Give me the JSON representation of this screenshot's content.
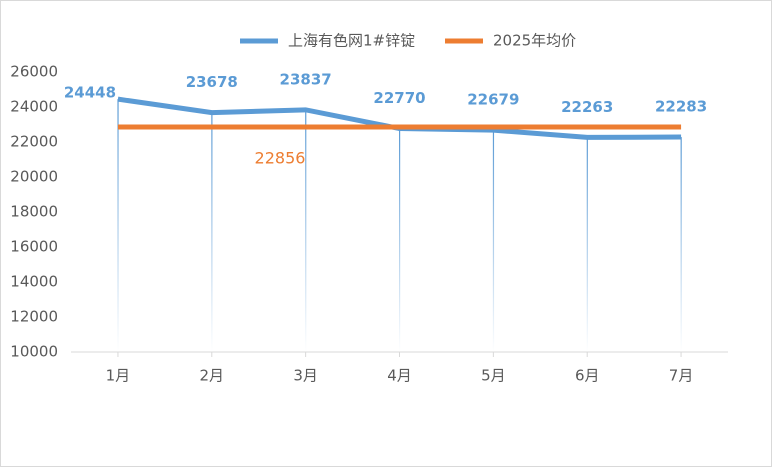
{
  "chart_data": {
    "type": "line",
    "categories": [
      "1月",
      "2月",
      "3月",
      "4月",
      "5月",
      "6月",
      "7月"
    ],
    "series": [
      {
        "name": "上海有色网1#锌锭",
        "color": "#5b9bd5",
        "values": [
          24448,
          23678,
          23837,
          22770,
          22679,
          22263,
          22283
        ]
      },
      {
        "name": "2025年均价",
        "color": "#ed7d31",
        "values": [
          22856,
          22856,
          22856,
          22856,
          22856,
          22856,
          22856
        ]
      }
    ],
    "ylim": [
      10000,
      26000
    ],
    "yticks": [
      10000,
      12000,
      14000,
      16000,
      18000,
      20000,
      22000,
      24000,
      26000
    ],
    "grid": false,
    "legend": "top"
  }
}
